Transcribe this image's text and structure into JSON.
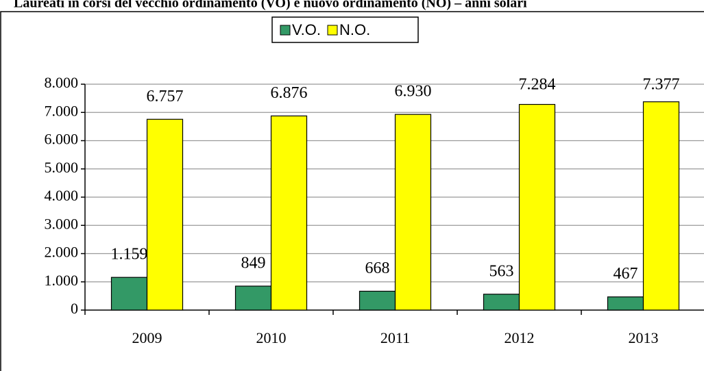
{
  "chart_data": {
    "type": "bar",
    "title": "Laureati in corsi del vecchio ordinamento (VO) e nuovo ordinamento (NO) – anni solari",
    "categories": [
      "2009",
      "2010",
      "2011",
      "2012",
      "2013"
    ],
    "series": [
      {
        "name": "V.O.",
        "color": "#339966",
        "values": [
          1159,
          849,
          668,
          563,
          467
        ],
        "value_labels": [
          "1.159",
          "849",
          "668",
          "563",
          "467"
        ]
      },
      {
        "name": "N.O.",
        "color": "#ffff00",
        "values": [
          6757,
          6876,
          6930,
          7284,
          7377
        ],
        "value_labels": [
          "6.757",
          "6.876",
          "6.930",
          "7.284",
          "7.377"
        ]
      }
    ],
    "ylim": [
      0,
      8000
    ],
    "yticks": [
      0,
      {
        "value": 1000,
        "label": "1.000"
      },
      {
        "value": 2000,
        "label": "2.000"
      },
      {
        "value": 3000,
        "label": "3.000"
      },
      {
        "value": 4000,
        "label": "4.000"
      },
      {
        "value": 5000,
        "label": "5.000"
      },
      {
        "value": 6000,
        "label": "6.000"
      },
      {
        "value": 7000,
        "label": "7.000"
      },
      {
        "value": 8000,
        "label": "8.000"
      }
    ],
    "grid": true,
    "legend": "top"
  }
}
